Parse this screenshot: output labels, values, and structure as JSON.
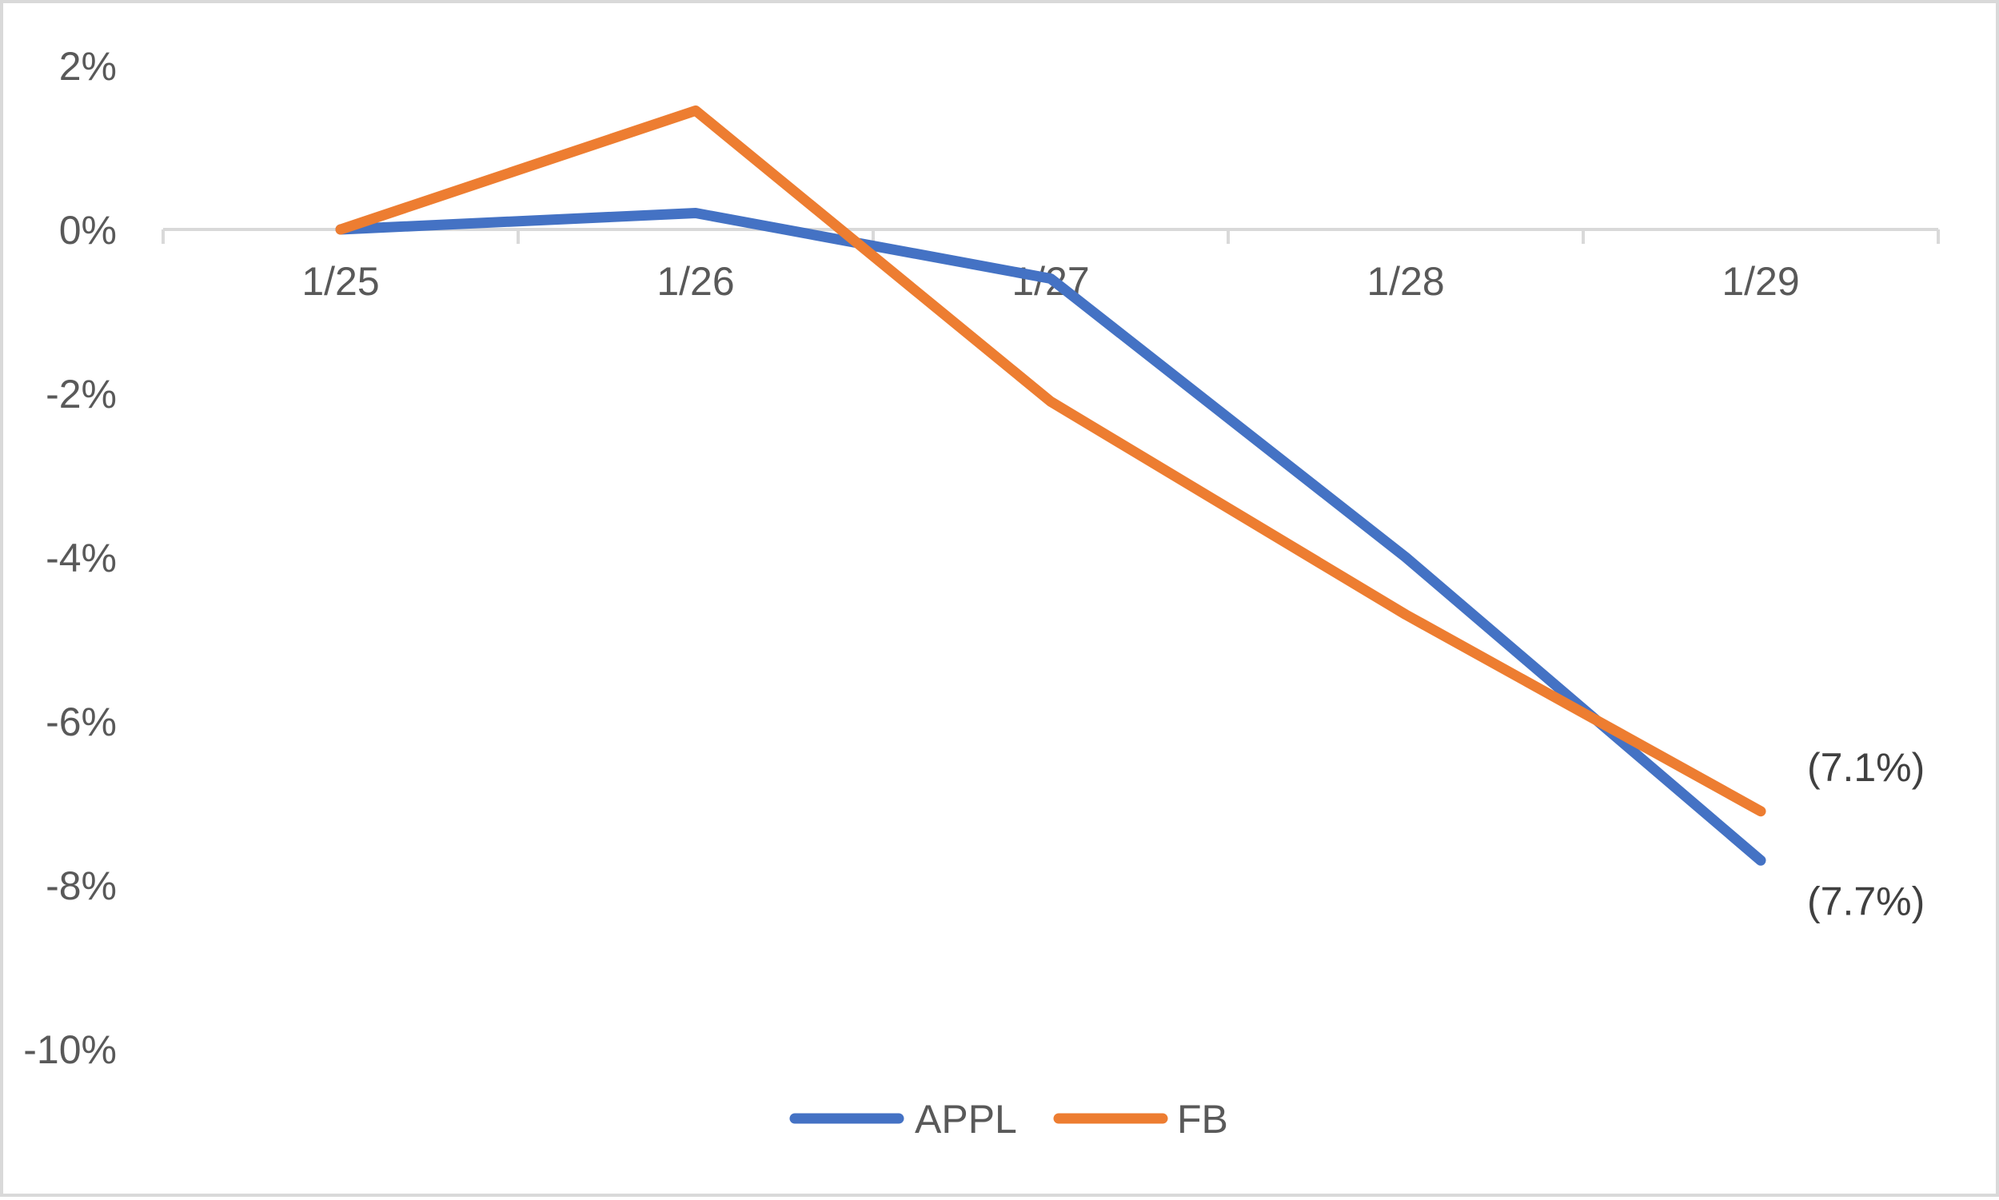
{
  "chart_data": {
    "type": "line",
    "categories": [
      "1/25",
      "1/26",
      "1/27",
      "1/28",
      "1/29"
    ],
    "y_ticks": [
      2,
      0,
      -2,
      -4,
      -6,
      -8,
      -10
    ],
    "y_tick_labels": [
      "2%",
      "0%",
      "-2%",
      "-4%",
      "-6%",
      "-8%",
      "-10%"
    ],
    "ylim": [
      -10,
      2
    ],
    "grid": false,
    "legend_position": "bottom",
    "series": [
      {
        "name": "APPL",
        "color": "#4472c4",
        "values": [
          0.0,
          0.2,
          -0.6,
          -4.0,
          -7.7
        ],
        "end_label": "(7.7%)"
      },
      {
        "name": "FB",
        "color": "#ed7d31",
        "values": [
          0.0,
          1.45,
          -2.1,
          -4.7,
          -7.1
        ],
        "end_label": "(7.1%)"
      }
    ],
    "colors": {
      "axis": "#d9d9d9",
      "text": "#595959",
      "border": "#d9d9d9"
    }
  }
}
